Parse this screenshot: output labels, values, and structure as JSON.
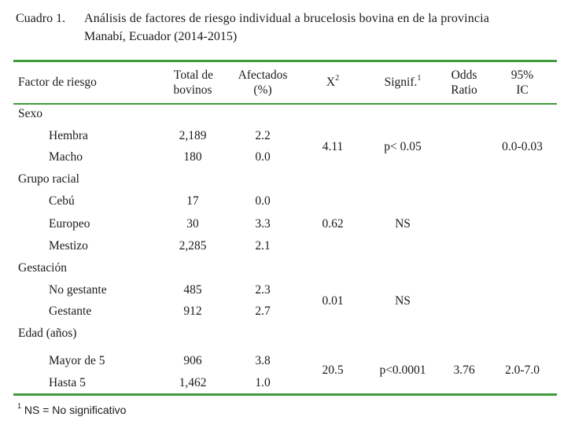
{
  "caption": {
    "label": "Cuadro 1.",
    "line1": "Análisis de factores de riesgo individual a brucelosis bovina en de la provincia",
    "line2": "Manabí, Ecuador (2014-2015)"
  },
  "table": {
    "headers": {
      "factor": "Factor de riesgo",
      "total_1": "Total de",
      "total_2": "bovinos",
      "afectados_1": "Afectados",
      "afectados_2": "(%)",
      "x2_base": "X",
      "x2_sup": "2",
      "signif": "Signif.",
      "signif_sup": "1",
      "odds_1": "Odds",
      "odds_2": "Ratio",
      "ic_1": "95%",
      "ic_2": "IC"
    },
    "groups": [
      {
        "name": "Sexo",
        "rows": [
          {
            "label": "Hembra",
            "total": "2,189",
            "pct": "2.2"
          },
          {
            "label": "Macho",
            "total": "180",
            "pct": "0.0"
          }
        ],
        "x2": "4.11",
        "signif": "p< 0.05",
        "odds": "",
        "ic": "0.0-0.03"
      },
      {
        "name": "Grupo racial",
        "rows": [
          {
            "label": "Cebú",
            "total": "17",
            "pct": "0.0"
          },
          {
            "label": "Europeo",
            "total": "30",
            "pct": "3.3"
          },
          {
            "label": "Mestizo",
            "total": "2,285",
            "pct": "2.1"
          }
        ],
        "x2": "0.62",
        "signif": "NS",
        "odds": "",
        "ic": ""
      },
      {
        "name": "Gestación",
        "rows": [
          {
            "label": "No gestante",
            "total": "485",
            "pct": "2.3"
          },
          {
            "label": "Gestante",
            "total": "912",
            "pct": "2.7"
          }
        ],
        "x2": "0.01",
        "signif": "NS",
        "odds": "",
        "ic": ""
      },
      {
        "name": "Edad (años)",
        "rows": [
          {
            "label": "Mayor de 5",
            "total": "906",
            "pct": "3.8"
          },
          {
            "label": "Hasta 5",
            "total": "1,462",
            "pct": "1.0"
          }
        ],
        "x2": "20.5",
        "signif": "p<0.0001",
        "odds": "3.76",
        "ic": "2.0-7.0"
      }
    ]
  },
  "footnote": {
    "sup": "1",
    "text": "NS = No significativo"
  },
  "colors": {
    "rule": "#3f9a3a"
  }
}
